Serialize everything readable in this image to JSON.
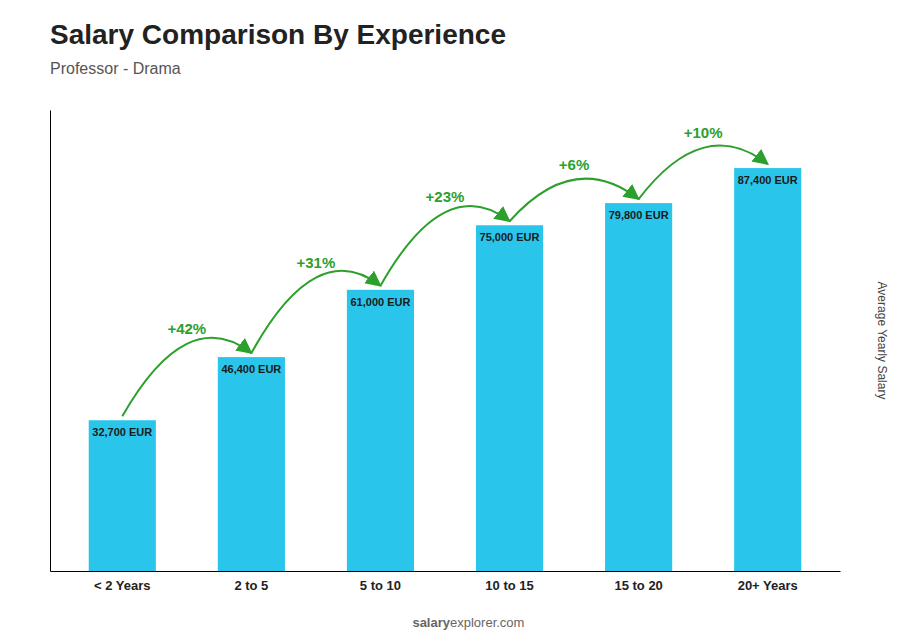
{
  "chart_data": {
    "type": "bar",
    "title": "Salary Comparison By Experience",
    "subtitle": "Professor - Drama",
    "categories": [
      "< 2 Years",
      "2 to 5",
      "5 to 10",
      "10 to 15",
      "15 to 20",
      "20+ Years"
    ],
    "values": [
      32700,
      46400,
      61000,
      75000,
      79800,
      87400
    ],
    "value_labels": [
      "32,700 EUR",
      "46,400 EUR",
      "61,000 EUR",
      "75,000 EUR",
      "79,800 EUR",
      "87,400 EUR"
    ],
    "data_labels": true,
    "color": "#29c5ea",
    "ylabel": "Average Yearly Salary",
    "ylim": [
      0,
      100000
    ],
    "tick_labels": "x",
    "grid": false,
    "annotations": [
      "+42%",
      "+31%",
      "+23%",
      "+6%",
      "+10%"
    ],
    "watermark": [
      "salary",
      "explorer.com"
    ]
  }
}
